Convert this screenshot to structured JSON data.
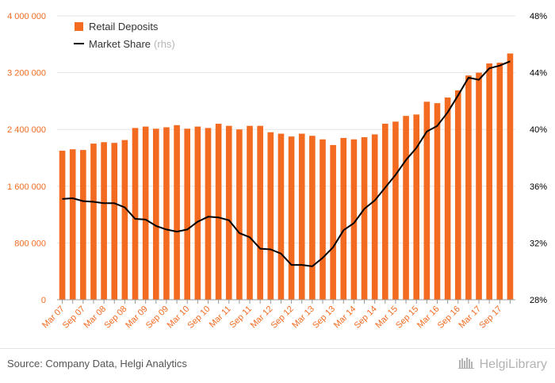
{
  "chart_data": {
    "type": "bar",
    "legend": {
      "placement": "top-left",
      "bar_label": "Retail Deposits",
      "line_label": "Market Share",
      "line_suffix": "(rhs)"
    },
    "categories": [
      "Mar 07",
      "Jun 07",
      "Sep 07",
      "Dec 07",
      "Mar 08",
      "Jun 08",
      "Sep 08",
      "Dec 08",
      "Mar 09",
      "Jun 09",
      "Sep 09",
      "Dec 09",
      "Mar 10",
      "Jun 10",
      "Sep 10",
      "Dec 10",
      "Mar 11",
      "Jun 11",
      "Sep 11",
      "Dec 11",
      "Mar 12",
      "Jun 12",
      "Sep 12",
      "Dec 12",
      "Mar 13",
      "Jun 13",
      "Sep 13",
      "Dec 13",
      "Mar 14",
      "Jun 14",
      "Sep 14",
      "Dec 14",
      "Mar 15",
      "Jun 15",
      "Sep 15",
      "Dec 15",
      "Mar 16",
      "Jun 16",
      "Sep 16",
      "Dec 16",
      "Mar 17",
      "Jun 17",
      "Sep 17",
      "Dec 17"
    ],
    "x_tick_labels": [
      "Mar 07",
      "Sep 07",
      "Mar 08",
      "Sep 08",
      "Mar 09",
      "Sep 09",
      "Mar 10",
      "Sep 10",
      "Mar 11",
      "Sep 11",
      "Mar 12",
      "Sep 12",
      "Mar 13",
      "Sep 13",
      "Mar 14",
      "Sep 14",
      "Mar 15",
      "Sep 15",
      "Mar 16",
      "Sep 16",
      "Mar 17",
      "Sep 17"
    ],
    "series": [
      {
        "name": "Retail Deposits",
        "type": "bar",
        "axis": "left",
        "color": "#f26b21",
        "values": [
          2100000,
          2120000,
          2110000,
          2200000,
          2220000,
          2210000,
          2250000,
          2420000,
          2440000,
          2410000,
          2430000,
          2460000,
          2410000,
          2440000,
          2420000,
          2480000,
          2450000,
          2400000,
          2450000,
          2450000,
          2360000,
          2340000,
          2300000,
          2340000,
          2310000,
          2260000,
          2180000,
          2280000,
          2260000,
          2290000,
          2330000,
          2480000,
          2510000,
          2590000,
          2610000,
          2790000,
          2770000,
          2850000,
          2950000,
          3160000,
          3200000,
          3330000,
          3340000,
          3470000
        ]
      },
      {
        "name": "Market Share",
        "type": "line",
        "axis": "right",
        "color": "#000000",
        "values": [
          35.1,
          35.15,
          34.95,
          34.9,
          34.8,
          34.8,
          34.5,
          33.7,
          33.65,
          33.2,
          32.95,
          32.8,
          32.95,
          33.5,
          33.85,
          33.8,
          33.6,
          32.7,
          32.4,
          31.6,
          31.55,
          31.25,
          30.45,
          30.45,
          30.35,
          30.95,
          31.7,
          32.9,
          33.4,
          34.4,
          35.0,
          35.9,
          36.8,
          37.85,
          38.7,
          39.85,
          40.25,
          41.2,
          42.4,
          43.65,
          43.5,
          44.3,
          44.5,
          44.8
        ]
      }
    ],
    "y_left": {
      "min": 0,
      "max": 4000000,
      "tick_labels": [
        "0",
        "800 000",
        "1 600 000",
        "2 400 000",
        "3 200 000",
        "4 000 000"
      ]
    },
    "y_right": {
      "min": 28,
      "max": 48,
      "tick_labels": [
        "28%",
        "32%",
        "36%",
        "40%",
        "44%",
        "48%"
      ]
    },
    "grid": true
  },
  "footer": {
    "source": "Source: Company Data, Helgi Analytics",
    "logo_text": "HelgiLibrary"
  }
}
